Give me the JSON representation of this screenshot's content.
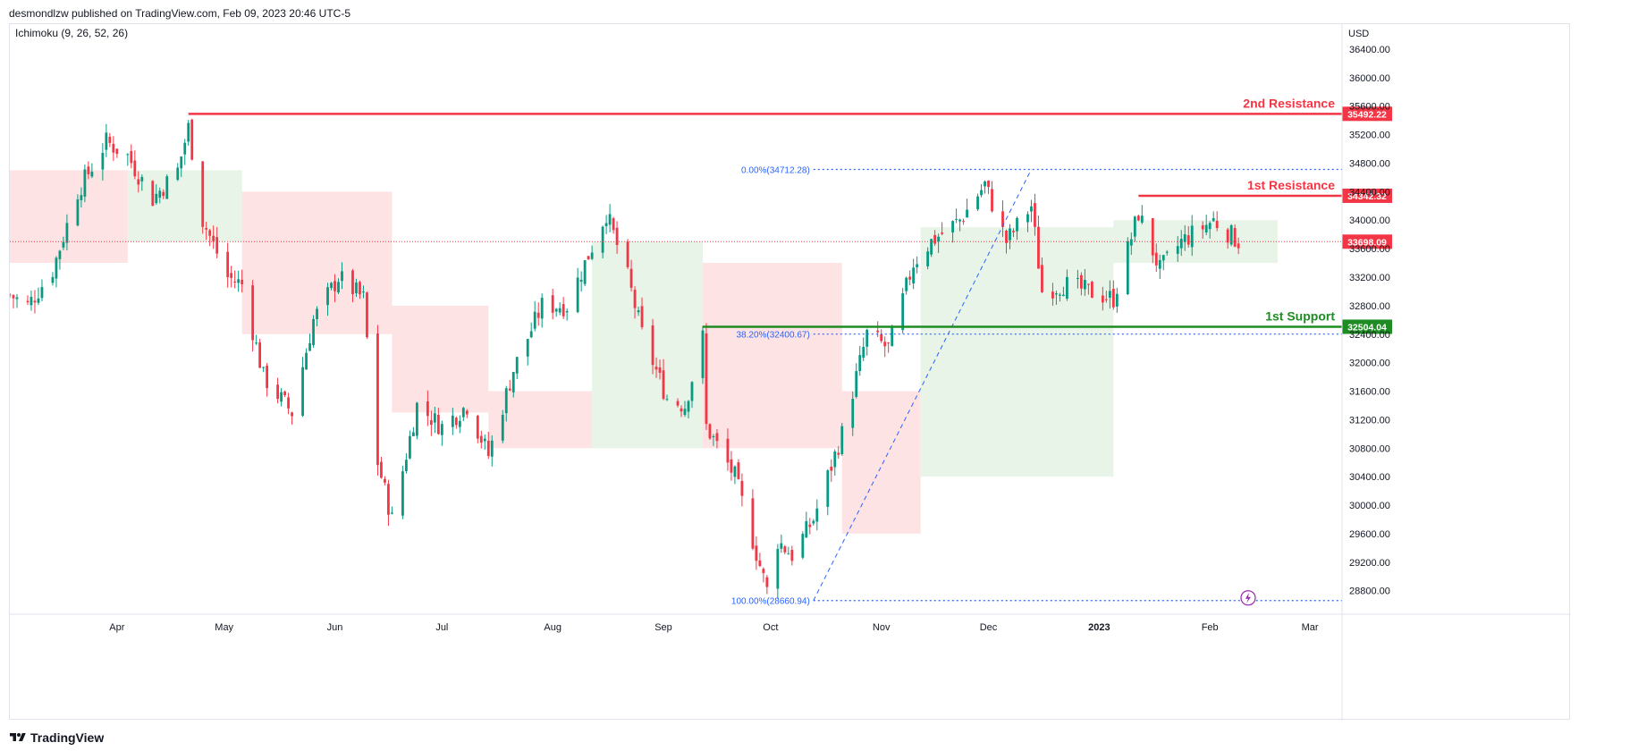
{
  "header": {
    "published_by": "desmondlzw published on TradingView.com, Feb 09, 2023 20:46 UTC-5"
  },
  "indicator": {
    "label": "Ichimoku (9, 26, 52, 26)"
  },
  "footer": {
    "brand": "TradingView"
  },
  "colors": {
    "bull": "#089981",
    "bear": "#f23645",
    "resistance": "#f23645",
    "support": "#1e8c23",
    "fib": "#2962ff",
    "cloud_bull": "#e6f3e6",
    "cloud_bear": "#fde0e0",
    "last_price": "#f23645"
  },
  "chart_data": {
    "type": "candlestick",
    "currency": "USD",
    "y_ticks": [
      28800,
      29200,
      29600,
      30000,
      30400,
      30800,
      31200,
      31600,
      32000,
      32400,
      32800,
      33200,
      33600,
      34000,
      34400,
      34800,
      35200,
      35600,
      36000,
      36400
    ],
    "ylim": [
      28620,
      36500
    ],
    "x_ticks": [
      {
        "label": "Apr",
        "date": "2022-04-01",
        "bold": false
      },
      {
        "label": "May",
        "date": "2022-05-01",
        "bold": false
      },
      {
        "label": "Jun",
        "date": "2022-06-01",
        "bold": false
      },
      {
        "label": "Jul",
        "date": "2022-07-01",
        "bold": false
      },
      {
        "label": "Aug",
        "date": "2022-08-01",
        "bold": false
      },
      {
        "label": "Sep",
        "date": "2022-09-01",
        "bold": false
      },
      {
        "label": "Oct",
        "date": "2022-10-01",
        "bold": false
      },
      {
        "label": "Nov",
        "date": "2022-11-01",
        "bold": false
      },
      {
        "label": "Dec",
        "date": "2022-12-01",
        "bold": false
      },
      {
        "label": "2023",
        "date": "2023-01-01",
        "bold": true
      },
      {
        "label": "Feb",
        "date": "2023-02-01",
        "bold": false
      },
      {
        "label": "Mar",
        "date": "2023-03-01",
        "bold": false
      }
    ],
    "xlim": [
      "2022-03-02",
      "2023-03-10"
    ],
    "levels": [
      {
        "label": "2nd Resistance",
        "price": 35492.22,
        "price_label": "35492.22",
        "kind": "resistance",
        "start": "2022-04-21",
        "end": "2023-03-10"
      },
      {
        "label": "1st Resistance",
        "price": 34342.32,
        "price_label": "34342.32",
        "kind": "resistance",
        "start": "2023-01-12",
        "end": "2023-03-10"
      },
      {
        "label": "1st Support",
        "price": 32504.04,
        "price_label": "32504.04",
        "kind": "support",
        "start": "2022-09-12",
        "end": "2023-03-10"
      }
    ],
    "last_price": {
      "price": 33698.09,
      "label": "33698.09"
    },
    "fibonacci": {
      "levels": [
        {
          "label": "0.00%(34712.28)",
          "price": 34712.28
        },
        {
          "label": "38.20%(32400.67)",
          "price": 32400.67
        },
        {
          "label": "100.00%(28660.94)",
          "price": 28660.94
        }
      ],
      "start": "2022-10-13",
      "end": "2022-12-13"
    },
    "price_path": [
      [
        "2022-03-02",
        32950
      ],
      [
        "2022-03-07",
        32800
      ],
      [
        "2022-03-14",
        33300
      ],
      [
        "2022-03-21",
        34400
      ],
      [
        "2022-03-29",
        35100
      ],
      [
        "2022-04-04",
        34900
      ],
      [
        "2022-04-11",
        34300
      ],
      [
        "2022-04-18",
        34700
      ],
      [
        "2022-04-21",
        35300
      ],
      [
        "2022-04-25",
        34000
      ],
      [
        "2022-05-02",
        33200
      ],
      [
        "2022-05-06",
        33100
      ],
      [
        "2022-05-12",
        31800
      ],
      [
        "2022-05-20",
        31300
      ],
      [
        "2022-05-26",
        32600
      ],
      [
        "2022-06-02",
        33200
      ],
      [
        "2022-06-09",
        32900
      ],
      [
        "2022-06-13",
        30600
      ],
      [
        "2022-06-17",
        29800
      ],
      [
        "2022-06-24",
        31400
      ],
      [
        "2022-07-01",
        31100
      ],
      [
        "2022-07-08",
        31400
      ],
      [
        "2022-07-14",
        30700
      ],
      [
        "2022-07-21",
        31900
      ],
      [
        "2022-07-29",
        32800
      ],
      [
        "2022-08-05",
        32800
      ],
      [
        "2022-08-16",
        34100
      ],
      [
        "2022-08-22",
        33200
      ],
      [
        "2022-08-26",
        32400
      ],
      [
        "2022-09-02",
        31500
      ],
      [
        "2022-09-07",
        31400
      ],
      [
        "2022-09-12",
        32350
      ],
      [
        "2022-09-13",
        31100
      ],
      [
        "2022-09-21",
        30400
      ],
      [
        "2022-09-30",
        28800
      ],
      [
        "2022-10-03",
        29500
      ],
      [
        "2022-10-07",
        29300
      ],
      [
        "2022-10-13",
        29800
      ],
      [
        "2022-10-21",
        31000
      ],
      [
        "2022-10-28",
        32400
      ],
      [
        "2022-11-03",
        32200
      ],
      [
        "2022-11-10",
        33400
      ],
      [
        "2022-11-15",
        33700
      ],
      [
        "2022-11-23",
        34000
      ],
      [
        "2022-11-30",
        34500
      ],
      [
        "2022-12-06",
        33700
      ],
      [
        "2022-12-13",
        34200
      ],
      [
        "2022-12-16",
        33000
      ],
      [
        "2022-12-22",
        33100
      ],
      [
        "2023-01-05",
        32900
      ],
      [
        "2023-01-12",
        34100
      ],
      [
        "2023-01-18",
        33300
      ],
      [
        "2023-01-24",
        33700
      ],
      [
        "2023-02-02",
        34000
      ],
      [
        "2023-02-09",
        33700
      ]
    ],
    "cloud": [
      {
        "start": "2022-03-02",
        "end": "2022-04-04",
        "top": 34700,
        "bottom": 33400,
        "kind": "bear"
      },
      {
        "start": "2022-04-04",
        "end": "2022-05-06",
        "top": 34700,
        "bottom": 33700,
        "kind": "bull"
      },
      {
        "start": "2022-05-06",
        "end": "2022-06-17",
        "top": 34400,
        "bottom": 32400,
        "kind": "bear"
      },
      {
        "start": "2022-06-17",
        "end": "2022-07-14",
        "top": 32800,
        "bottom": 31300,
        "kind": "bear"
      },
      {
        "start": "2022-07-14",
        "end": "2022-08-12",
        "top": 31600,
        "bottom": 30800,
        "kind": "bear"
      },
      {
        "start": "2022-08-12",
        "end": "2022-09-12",
        "top": 33700,
        "bottom": 30800,
        "kind": "bull"
      },
      {
        "start": "2022-09-12",
        "end": "2022-10-21",
        "top": 33400,
        "bottom": 30800,
        "kind": "bear"
      },
      {
        "start": "2022-10-21",
        "end": "2022-11-12",
        "top": 31600,
        "bottom": 29600,
        "kind": "bear"
      },
      {
        "start": "2022-11-12",
        "end": "2023-01-05",
        "top": 33900,
        "bottom": 30400,
        "kind": "bull"
      },
      {
        "start": "2023-01-05",
        "end": "2023-02-20",
        "top": 34000,
        "bottom": 33400,
        "kind": "bull"
      }
    ]
  }
}
